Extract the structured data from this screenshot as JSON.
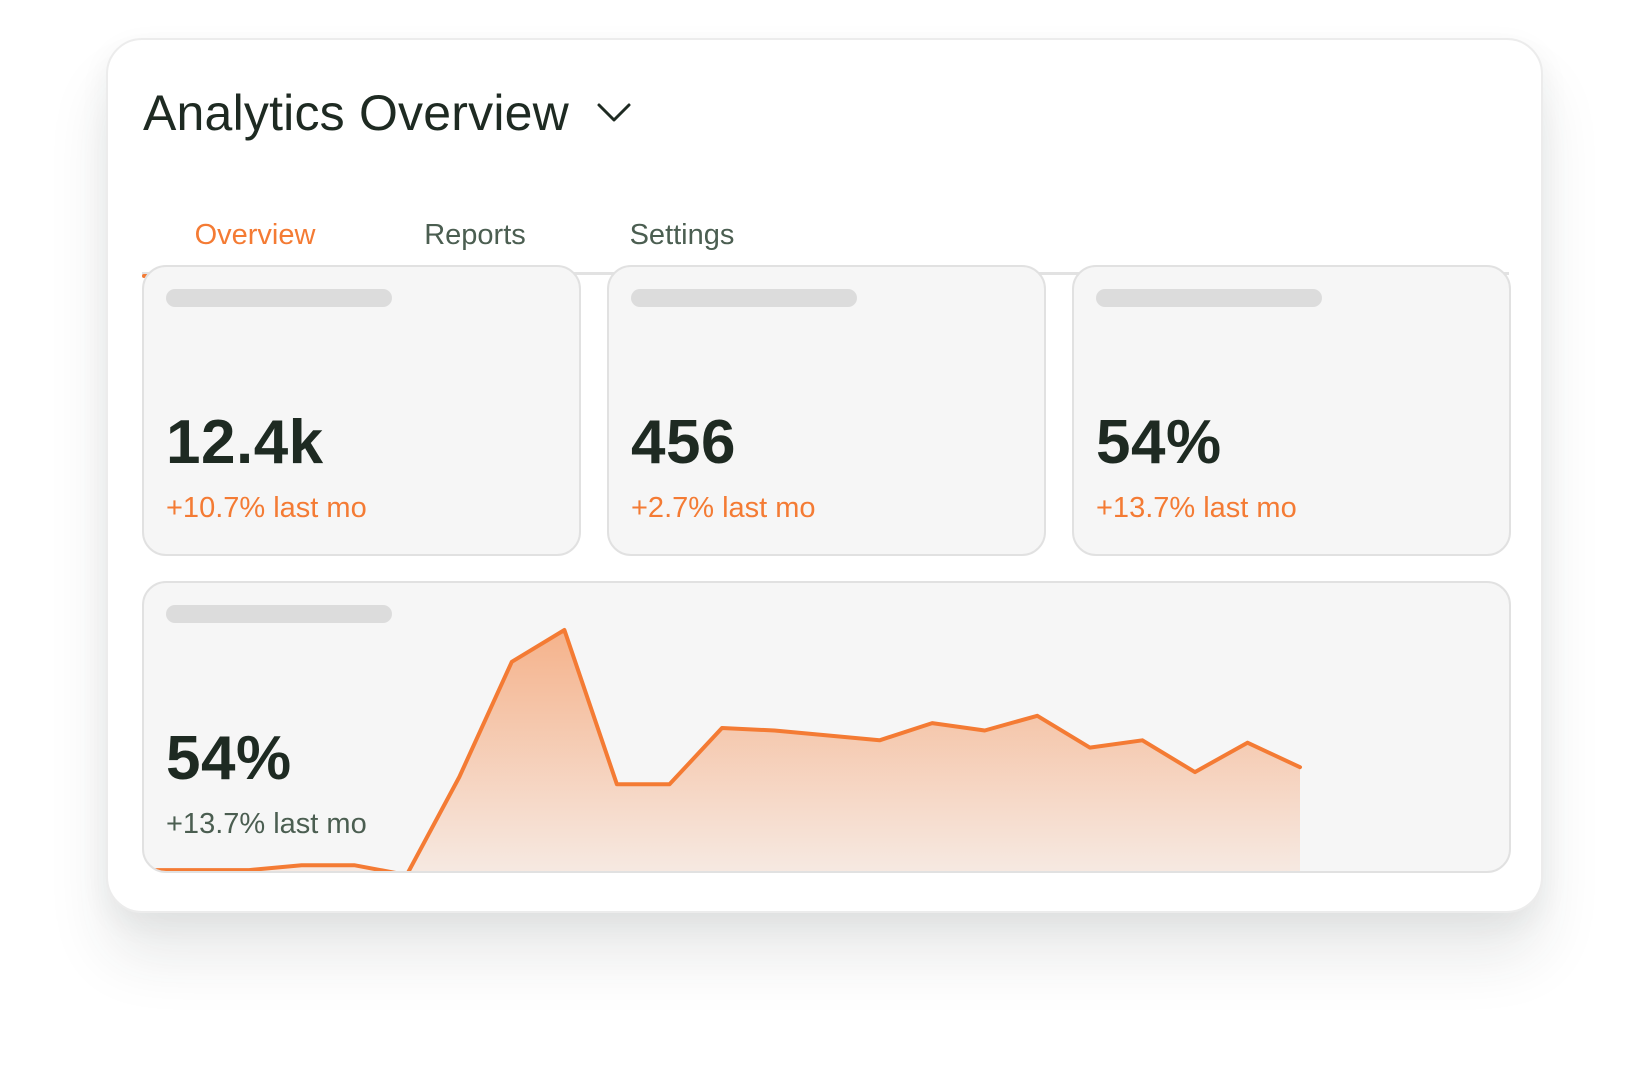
{
  "header": {
    "title": "Analytics Overview",
    "dropdown_icon": "chevron-down-icon"
  },
  "tabs": [
    {
      "label": "Overview",
      "active": true
    },
    {
      "label": "Reports",
      "active": false
    },
    {
      "label": "Settings",
      "active": false
    }
  ],
  "stats": [
    {
      "value": "12.4k",
      "change": "+10.7% last mo"
    },
    {
      "value": "456",
      "change": "+2.7% last mo"
    },
    {
      "value": "54%",
      "change": "+13.7% last mo"
    }
  ],
  "chart_card": {
    "value": "54%",
    "change": "+13.7% last mo"
  },
  "colors": {
    "accent": "#f47b34",
    "text_primary": "#1e2a22",
    "text_secondary": "#4b5e51",
    "card_background": "#f6f6f6",
    "skeleton": "#dcdcdc"
  },
  "chart_data": {
    "type": "area",
    "title": "",
    "xlabel": "",
    "ylabel": "",
    "grid": false,
    "legend": "none",
    "x": [
      0,
      1,
      2,
      3,
      4,
      5,
      6,
      7,
      8,
      9,
      10,
      11,
      12,
      13,
      14,
      15,
      16,
      17,
      18,
      19,
      20,
      21,
      22
    ],
    "ylim": [
      0,
      100
    ],
    "series": [
      {
        "color": "#f47b34",
        "values": [
          2,
          2,
          2,
          4,
          4,
          0,
          40,
          87,
          100,
          37,
          37,
          60,
          59,
          57,
          55,
          62,
          59,
          65,
          52,
          55,
          42,
          54,
          44
        ]
      }
    ]
  }
}
